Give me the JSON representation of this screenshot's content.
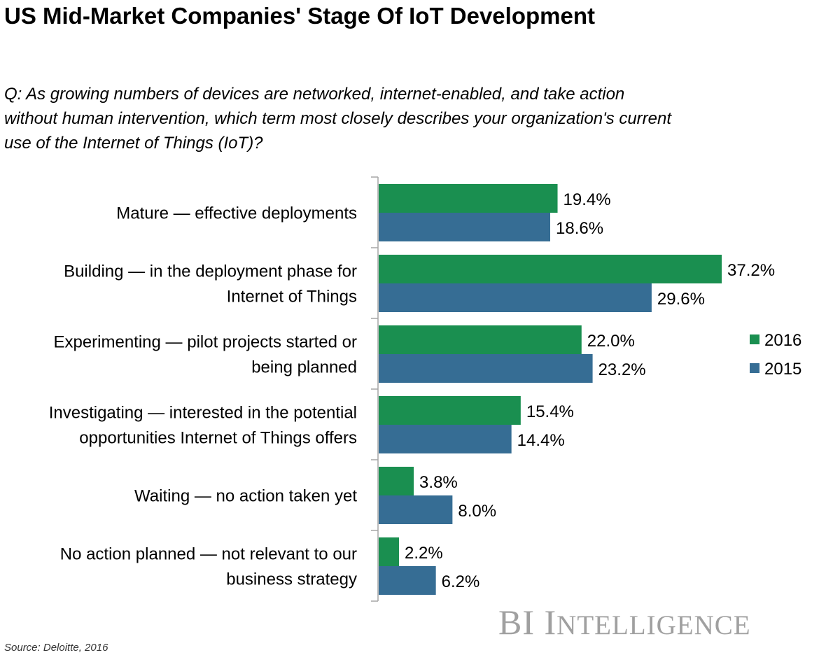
{
  "chart_data": {
    "type": "bar",
    "orientation": "horizontal",
    "title": "US Mid-Market Companies' Stage Of IoT Development",
    "subtitle": "Q: As growing numbers of devices are networked, internet-enabled, and take action without human intervention, which term most closely describes your organization's current use of the Internet of Things (IoT)?",
    "categories": [
      [
        "Mature — effective deployments"
      ],
      [
        "Building — in the deployment phase for",
        "Internet of Things"
      ],
      [
        "Experimenting — pilot projects started or",
        "being planned"
      ],
      [
        "Investigating — interested in the potential",
        "opportunities Internet of Things offers"
      ],
      [
        "Waiting — no action taken yet"
      ],
      [
        "No action planned — not relevant to our",
        "business strategy"
      ]
    ],
    "series": [
      {
        "name": "2016",
        "color": "#1a8f50",
        "values": [
          19.4,
          37.2,
          22.0,
          15.4,
          3.8,
          2.2
        ],
        "labels": [
          "19.4%",
          "37.2%",
          "22.0%",
          "15.4%",
          "3.8%",
          "2.2%"
        ]
      },
      {
        "name": "2015",
        "color": "#366d94",
        "values": [
          18.6,
          29.6,
          23.2,
          14.4,
          8.0,
          6.2
        ],
        "labels": [
          "18.6%",
          "29.6%",
          "23.2%",
          "14.4%",
          "8.0%",
          "6.2%"
        ]
      }
    ],
    "xlim": [
      0,
      40
    ],
    "grid": false,
    "legend": "right",
    "xlabel": "",
    "ylabel": ""
  },
  "source": "Source: Deloitte, 2016",
  "logo": {
    "text_big1": "BI I",
    "text_small1": "NTELLIGENCE"
  }
}
